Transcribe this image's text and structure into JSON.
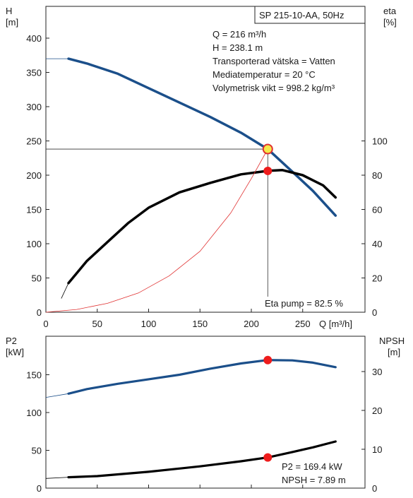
{
  "chart_data": [
    {
      "type": "line",
      "title": "SP 215-10-AA, 50Hz",
      "info_lines": [
        "Q = 216 m³/h",
        "H = 238.1 m",
        "Transporterad vätska = Vatten",
        "Mediatemperatur = 20 °C",
        "Volymetrisk vikt = 998.2 kg/m³"
      ],
      "eta_label": "Eta pump = 82.5 %",
      "xlabel": "Q [m³/h]",
      "xlim": [
        0,
        300
      ],
      "xticks": [
        "0",
        "50",
        "100",
        "150",
        "200",
        "250"
      ],
      "y_left_label": [
        "H",
        "[m]"
      ],
      "y_left_lim": [
        0,
        420
      ],
      "y_left_ticks": [
        "0",
        "50",
        "100",
        "150",
        "200",
        "250",
        "300",
        "350",
        "400"
      ],
      "y_right_label": [
        "eta",
        "[%]"
      ],
      "y_right_lim": [
        0,
        100
      ],
      "y_right_ticks": [
        "0",
        "20",
        "40",
        "60",
        "80",
        "100"
      ],
      "grid": false,
      "series": [
        {
          "axis": "left",
          "color": "#1b4f8a",
          "x": [
            0,
            22,
            40,
            70,
            100,
            130,
            160,
            190,
            216,
            240,
            260,
            282
          ],
          "y": [
            370,
            370,
            363,
            348,
            327,
            306,
            285,
            262,
            238,
            205,
            177,
            141
          ],
          "dashed_from": 0,
          "solid_from": 22
        },
        {
          "axis": "right",
          "color": "#000000",
          "x": [
            15,
            22,
            40,
            60,
            80,
            100,
            130,
            160,
            190,
            216,
            230,
            250,
            270,
            282
          ],
          "y": [
            8,
            17,
            30,
            41,
            52,
            61,
            70,
            75.5,
            80.5,
            82.5,
            83,
            80,
            74,
            67
          ],
          "dashed_from": 15,
          "solid_from": 22
        },
        {
          "axis": "left",
          "color": "#e03030",
          "x": [
            0,
            30,
            60,
            90,
            120,
            150,
            180,
            200,
            216
          ],
          "y": [
            0,
            4,
            13,
            28,
            53,
            89,
            145,
            195,
            238.1
          ],
          "role": "system curve"
        }
      ],
      "operating_point": {
        "x": 216,
        "h": 238.1,
        "eta": 82.5
      }
    },
    {
      "type": "line",
      "xlim": [
        0,
        300
      ],
      "y_left_label": [
        "P2",
        "[kW]"
      ],
      "y_left_lim": [
        0,
        180
      ],
      "y_left_ticks": [
        "0",
        "50",
        "100",
        "150"
      ],
      "y_right_label": [
        "NPSH",
        "[m]"
      ],
      "y_right_lim": [
        0,
        36
      ],
      "y_right_ticks": [
        "0",
        "10",
        "20",
        "30"
      ],
      "info_lines": [
        "P2 = 169.4 kW",
        "NPSH = 7.89 m"
      ],
      "grid": false,
      "series": [
        {
          "axis": "left",
          "color": "#1b4f8a",
          "x": [
            0,
            22,
            40,
            70,
            100,
            130,
            160,
            190,
            216,
            240,
            260,
            282
          ],
          "y": [
            120,
            125,
            131,
            138,
            144,
            150,
            158,
            165,
            169.4,
            169,
            166,
            160
          ],
          "solid_from": 22
        },
        {
          "axis": "right",
          "color": "#000000",
          "x": [
            0,
            22,
            50,
            100,
            150,
            190,
            216,
            240,
            260,
            282
          ],
          "y": [
            2.5,
            2.8,
            3.1,
            4.2,
            5.6,
            6.9,
            7.89,
            9.3,
            10.5,
            12
          ],
          "solid_from": 22
        }
      ],
      "operating_point": {
        "x": 216,
        "p2": 169.4,
        "npsh": 7.89
      }
    }
  ]
}
